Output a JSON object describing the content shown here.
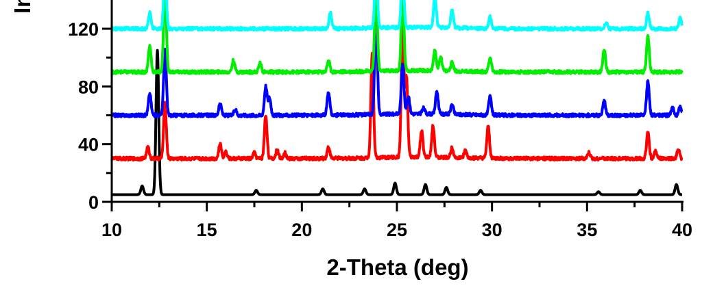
{
  "chart_data": {
    "type": "line",
    "title": "",
    "xlabel": "2-Theta (deg)",
    "ylabel": "Int",
    "xlim": [
      10,
      40
    ],
    "ylim": [
      0,
      140
    ],
    "xticks": [
      10,
      15,
      20,
      25,
      30,
      35,
      40
    ],
    "yticks": [
      0,
      40,
      80,
      120
    ],
    "grid": false,
    "legend": "none",
    "series": [
      {
        "color": "#000000",
        "baseline": 5,
        "peaks": [
          [
            11.6,
            6
          ],
          [
            12.4,
            100
          ],
          [
            17.6,
            3
          ],
          [
            21.1,
            4
          ],
          [
            23.3,
            4
          ],
          [
            24.9,
            8
          ],
          [
            26.5,
            7
          ],
          [
            27.6,
            5
          ],
          [
            29.4,
            3
          ],
          [
            35.6,
            2
          ],
          [
            37.8,
            3
          ],
          [
            39.7,
            7
          ]
        ]
      },
      {
        "color": "#ff0000",
        "baseline": 30,
        "peaks": [
          [
            11.9,
            8
          ],
          [
            12.8,
            38
          ],
          [
            15.7,
            10
          ],
          [
            16.0,
            5
          ],
          [
            17.5,
            4
          ],
          [
            18.1,
            30
          ],
          [
            18.7,
            6
          ],
          [
            19.1,
            4
          ],
          [
            21.4,
            8
          ],
          [
            23.7,
            72
          ],
          [
            25.3,
            90
          ],
          [
            25.5,
            55
          ],
          [
            26.3,
            18
          ],
          [
            26.9,
            22
          ],
          [
            27.9,
            7
          ],
          [
            28.6,
            5
          ],
          [
            29.8,
            22
          ],
          [
            35.1,
            4
          ],
          [
            38.2,
            18
          ],
          [
            38.6,
            5
          ],
          [
            39.8,
            6
          ]
        ]
      },
      {
        "color": "#0000ff",
        "baseline": 60,
        "peaks": [
          [
            12.0,
            15
          ],
          [
            12.8,
            45
          ],
          [
            15.7,
            8
          ],
          [
            16.5,
            4
          ],
          [
            18.1,
            20
          ],
          [
            18.3,
            12
          ],
          [
            21.4,
            16
          ],
          [
            23.9,
            70
          ],
          [
            25.3,
            35
          ],
          [
            25.6,
            12
          ],
          [
            26.4,
            4
          ],
          [
            27.1,
            16
          ],
          [
            27.9,
            7
          ],
          [
            29.9,
            13
          ],
          [
            35.9,
            10
          ],
          [
            38.2,
            24
          ],
          [
            39.5,
            5
          ],
          [
            39.9,
            6
          ]
        ]
      },
      {
        "color": "#00ee00",
        "baseline": 90,
        "peaks": [
          [
            12.0,
            18
          ],
          [
            12.8,
            60
          ],
          [
            16.4,
            8
          ],
          [
            17.8,
            6
          ],
          [
            21.4,
            8
          ],
          [
            23.9,
            60
          ],
          [
            25.3,
            55
          ],
          [
            27.0,
            14
          ],
          [
            27.3,
            10
          ],
          [
            27.9,
            6
          ],
          [
            29.9,
            10
          ],
          [
            35.9,
            16
          ],
          [
            38.2,
            25
          ]
        ]
      },
      {
        "color": "#00ffff",
        "baseline": 120,
        "peaks": [
          [
            12.0,
            11
          ],
          [
            12.8,
            40
          ],
          [
            21.5,
            11
          ],
          [
            23.9,
            45
          ],
          [
            25.3,
            40
          ],
          [
            27.0,
            22
          ],
          [
            27.9,
            12
          ],
          [
            29.9,
            8
          ],
          [
            36.0,
            4
          ],
          [
            38.2,
            11
          ],
          [
            39.9,
            8
          ]
        ]
      }
    ]
  }
}
